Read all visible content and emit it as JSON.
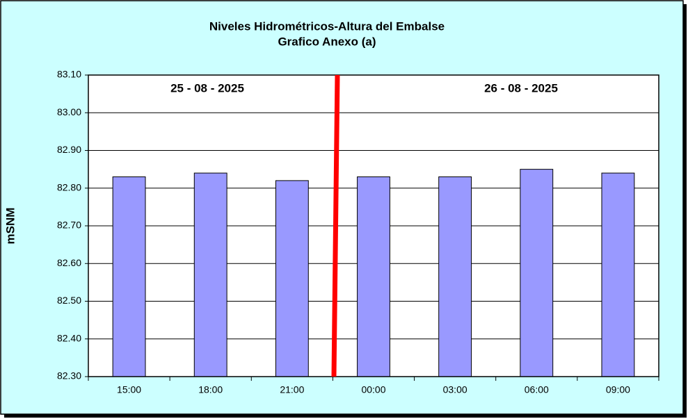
{
  "chart_data": {
    "type": "bar",
    "title": "Niveles Hidrométricos-Altura del Embalse",
    "subtitle": "Grafico Anexo (a)",
    "y_label": "mSNM",
    "annotations": [
      "25 - 08 - 2025",
      "26 - 08 - 2025"
    ],
    "categories": [
      "15:00",
      "18:00",
      "21:00",
      "00:00",
      "03:00",
      "06:00",
      "09:00"
    ],
    "values": [
      82.83,
      82.84,
      82.82,
      82.83,
      82.83,
      82.85,
      82.84
    ],
    "color": "#9999ff",
    "ylim": [
      82.3,
      83.1
    ],
    "yticks": [
      {
        "value": 82.3,
        "label": "82.30"
      },
      {
        "value": 82.4,
        "label": "82.40"
      },
      {
        "value": 82.5,
        "label": "82.50"
      },
      {
        "value": 82.6,
        "label": "82.60"
      },
      {
        "value": 82.7,
        "label": "82.70"
      },
      {
        "value": 82.8,
        "label": "82.80"
      },
      {
        "value": 82.9,
        "label": "82.90"
      },
      {
        "value": 83.0,
        "label": "83.00"
      },
      {
        "value": 83.1,
        "label": "83.10"
      }
    ],
    "grid": true
  }
}
